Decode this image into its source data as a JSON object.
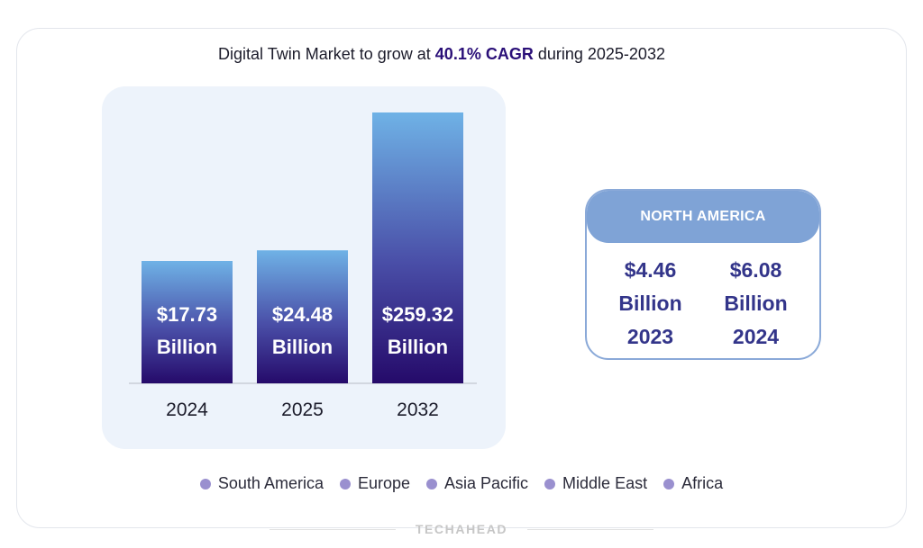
{
  "title": {
    "prefix": "Digital Twin Market to grow at ",
    "highlight": "40.1% CAGR",
    "suffix": " during 2025-2032"
  },
  "chart_data": {
    "type": "bar",
    "categories": [
      "2024",
      "2025",
      "2032"
    ],
    "values": [
      17.73,
      24.48,
      259.32
    ],
    "labels": [
      [
        "$17.73",
        "Billion"
      ],
      [
        "$24.48",
        "Billion"
      ],
      [
        "$259.32",
        "Billion"
      ]
    ],
    "unit": "Billion USD",
    "axis_scale": "not to scale (visual heights compressed)",
    "title": "Digital Twin Market to grow at 40.1% CAGR during 2025-2032",
    "xlabel": "",
    "ylabel": "",
    "grid": false,
    "colors": {
      "bar_top": "#6fb2e6",
      "bar_bottom": "#250a6a",
      "baseline": "#c9ced8"
    }
  },
  "north_america": {
    "header": "NORTH AMERICA",
    "stats": [
      {
        "value": "$4.46",
        "unit": "Billion",
        "year": "2023"
      },
      {
        "value": "$6.08",
        "unit": "Billion",
        "year": "2024"
      }
    ]
  },
  "legend": [
    "South America",
    "Europe",
    "Asia Pacific",
    "Middle East",
    "Africa"
  ],
  "footer": {
    "brand": "TECHAHEAD"
  },
  "colors": {
    "accent": "#2a0f78",
    "panel_bg": "#edf3fb",
    "na_header": "#7fa3d6",
    "na_text": "#33358a",
    "legend_dot": "#9a90cf"
  }
}
